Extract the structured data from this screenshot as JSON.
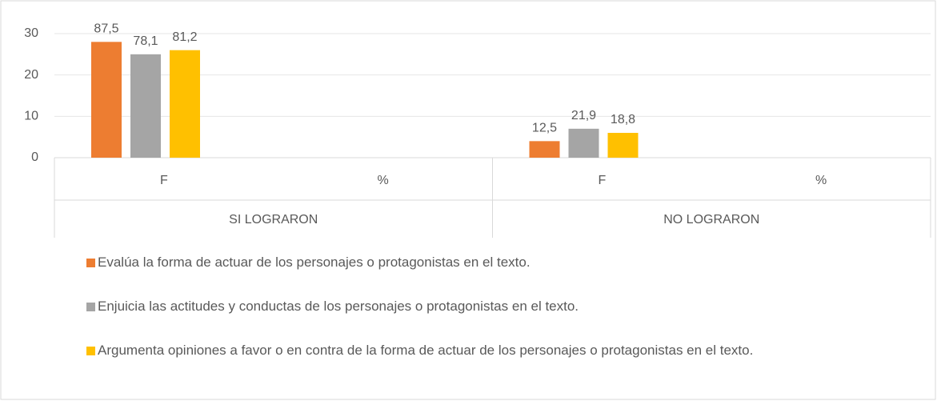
{
  "chart_data": {
    "type": "bar",
    "categories": [
      "F",
      "%",
      "F",
      "%"
    ],
    "groups": [
      "SI LOGRARON",
      "NO LOGRARON"
    ],
    "series": [
      {
        "name": "Evalúa la forma de actuar de los personajes o protagonistas en el texto.",
        "color": "#ed7d31",
        "values": [
          28,
          null,
          4,
          null
        ],
        "annotations": [
          "87,5",
          null,
          "12,5",
          null
        ]
      },
      {
        "name": "Enjuicia las actitudes y conductas de los personajes o protagonistas en el texto.",
        "color": "#a5a5a5",
        "values": [
          25,
          null,
          7,
          null
        ],
        "annotations": [
          "78,1",
          null,
          "21,9",
          null
        ]
      },
      {
        "name": "Argumenta opiniones a favor o en contra de la forma de actuar de los personajes o protagonistas en el texto.",
        "color": "#ffc000",
        "values": [
          26,
          null,
          6,
          null
        ],
        "annotations": [
          "81,2",
          null,
          "18,8",
          null
        ]
      }
    ],
    "ylim": [
      0,
      30
    ],
    "yticks": [
      0,
      10,
      20,
      30
    ],
    "grid": true,
    "legend": "bottom"
  }
}
